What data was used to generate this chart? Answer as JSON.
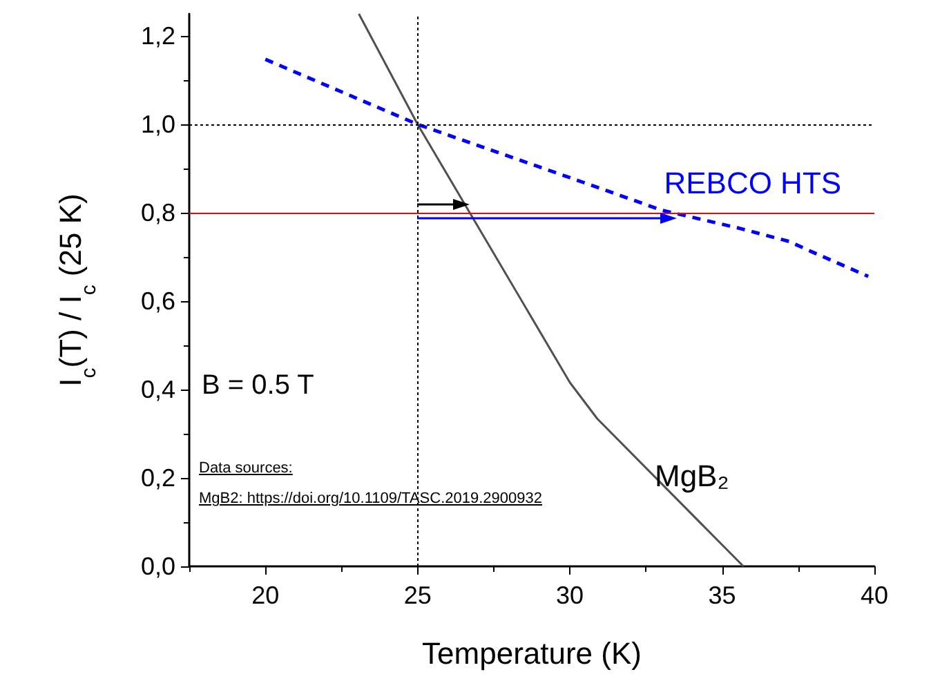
{
  "chart_data": {
    "type": "line",
    "xlabel": "Temperature (K)",
    "ylabel": "I$_{c}$(T) / I$_{c}$ (25 K)",
    "xlim": [
      17.5,
      40
    ],
    "xticks": [
      20,
      25,
      30,
      35,
      40
    ],
    "ylim": [
      0,
      1.25
    ],
    "yticks": [
      {
        "value": 0,
        "label": "0,0"
      },
      {
        "value": 0.2,
        "label": "0,2"
      },
      {
        "value": 0.4,
        "label": "0,4"
      },
      {
        "value": 0.6,
        "label": "0,6"
      },
      {
        "value": 0.8,
        "label": "0,8"
      },
      {
        "value": 1.0,
        "label": "1,0"
      },
      {
        "value": 1.2,
        "label": "1,2"
      }
    ],
    "grid": false,
    "series": [
      {
        "color": "#505050",
        "line_style": "solid",
        "x": [
          23.07,
          25,
          30,
          30.9,
          35.7
        ],
        "values": [
          1.25,
          1.0,
          0.416,
          0.334,
          0
        ]
      },
      {
        "color": "#0000ff",
        "line_style": "dashed",
        "x": [
          20,
          25,
          30.8,
          33,
          35.5,
          37.2,
          38,
          39.8
        ],
        "values": [
          1.147,
          1.0,
          0.86,
          0.806,
          0.766,
          0.735,
          0.71,
          0.656
        ]
      }
    ],
    "ref_lines": [
      {
        "axis": "y",
        "value": 0.8,
        "color": "#ff0000",
        "line_style": "solid"
      },
      {
        "axis": "x",
        "value": 25,
        "color": "#000000",
        "line_style": "dotted"
      },
      {
        "axis": "y",
        "value": 1.0,
        "color": "#000000",
        "line_style": "dotted"
      }
    ],
    "annotations": [
      "B = 0.5 T",
      "Data sources:",
      "MgB2:  https://doi.org/10.1109/TASC.2019.2900932",
      {
        "text": "REBCO HTS",
        "x": 33.5,
        "y": 0.79
      },
      "MgB₂"
    ]
  }
}
